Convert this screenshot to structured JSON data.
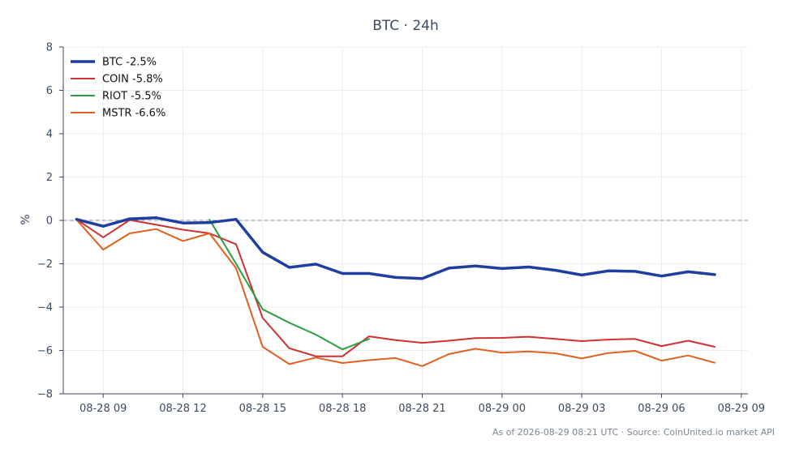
{
  "chart_data": {
    "type": "line",
    "title": "BTC · 24h",
    "xlabel": "",
    "ylabel": "%",
    "ylim": [
      -8,
      8
    ],
    "yticks": [
      8,
      6,
      4,
      2,
      0,
      -2,
      -4,
      -6,
      -8
    ],
    "xlim": [
      "2026-08-28 07:30",
      "2026-08-29 09:15"
    ],
    "xticks": [
      {
        "t": "2026-08-28 09:00",
        "label": "08-28 09"
      },
      {
        "t": "2026-08-28 12:00",
        "label": "08-28 12"
      },
      {
        "t": "2026-08-28 15:00",
        "label": "08-28 15"
      },
      {
        "t": "2026-08-28 18:00",
        "label": "08-28 18"
      },
      {
        "t": "2026-08-28 21:00",
        "label": "08-28 21"
      },
      {
        "t": "2026-08-29 00:00",
        "label": "08-29 00"
      },
      {
        "t": "2026-08-29 03:00",
        "label": "08-29 03"
      },
      {
        "t": "2026-08-29 06:00",
        "label": "08-29 06"
      },
      {
        "t": "2026-08-29 09:00",
        "label": "08-29 09"
      }
    ],
    "grid": true,
    "legend": "top-left",
    "reference_line": {
      "y": 0,
      "color": "#8090a8",
      "style": "dashed"
    },
    "series": [
      {
        "name": "BTC -2.5%",
        "color": "#1f3fa0",
        "width": 3.5,
        "x": [
          "2026-08-28 08:00",
          "2026-08-28 09:00",
          "2026-08-28 10:00",
          "2026-08-28 11:00",
          "2026-08-28 12:00",
          "2026-08-28 13:00",
          "2026-08-28 14:00",
          "2026-08-28 15:00",
          "2026-08-28 16:00",
          "2026-08-28 17:00",
          "2026-08-28 18:00",
          "2026-08-28 19:00",
          "2026-08-28 20:00",
          "2026-08-28 21:00",
          "2026-08-28 22:00",
          "2026-08-28 23:00",
          "2026-08-29 00:00",
          "2026-08-29 01:00",
          "2026-08-29 02:00",
          "2026-08-29 03:00",
          "2026-08-29 04:00",
          "2026-08-29 05:00",
          "2026-08-29 06:00",
          "2026-08-29 07:00",
          "2026-08-29 08:00"
        ],
        "y": [
          0.05,
          -0.27,
          0.07,
          0.12,
          -0.12,
          -0.1,
          0.05,
          -1.47,
          -2.17,
          -2.02,
          -2.45,
          -2.45,
          -2.63,
          -2.68,
          -2.2,
          -2.1,
          -2.22,
          -2.15,
          -2.3,
          -2.52,
          -2.33,
          -2.35,
          -2.57,
          -2.37,
          -2.5
        ]
      },
      {
        "name": "COIN -5.8%",
        "color": "#d03030",
        "width": 2,
        "x": [
          "2026-08-28 08:00",
          "2026-08-28 09:00",
          "2026-08-28 10:00",
          "2026-08-28 11:00",
          "2026-08-28 12:00",
          "2026-08-28 13:00",
          "2026-08-28 14:00",
          "2026-08-28 15:00",
          "2026-08-28 16:00",
          "2026-08-28 17:00",
          "2026-08-28 18:00",
          "2026-08-28 19:00",
          "2026-08-28 20:00",
          "2026-08-28 21:00",
          "2026-08-28 22:00",
          "2026-08-28 23:00",
          "2026-08-29 00:00",
          "2026-08-29 01:00",
          "2026-08-29 02:00",
          "2026-08-29 03:00",
          "2026-08-29 04:00",
          "2026-08-29 05:00",
          "2026-08-29 06:00",
          "2026-08-29 07:00",
          "2026-08-29 08:00"
        ],
        "y": [
          0.05,
          -0.78,
          0.02,
          -0.2,
          -0.43,
          -0.6,
          -1.1,
          -4.5,
          -5.9,
          -6.27,
          -6.27,
          -5.35,
          -5.52,
          -5.65,
          -5.55,
          -5.43,
          -5.42,
          -5.37,
          -5.47,
          -5.57,
          -5.5,
          -5.47,
          -5.8,
          -5.55,
          -5.83
        ]
      },
      {
        "name": "RIOT -5.5%",
        "color": "#28a040",
        "width": 2,
        "x": [
          "2026-08-28 13:00",
          "2026-08-28 14:00",
          "2026-08-28 15:00",
          "2026-08-28 16:00",
          "2026-08-28 17:00",
          "2026-08-28 18:00",
          "2026-08-28 19:00"
        ],
        "y": [
          0.03,
          -2.0,
          -4.1,
          -4.72,
          -5.27,
          -5.95,
          -5.47
        ]
      },
      {
        "name": "MSTR -6.6%",
        "color": "#e06020",
        "width": 2,
        "x": [
          "2026-08-28 08:00",
          "2026-08-28 09:00",
          "2026-08-28 10:00",
          "2026-08-28 11:00",
          "2026-08-28 12:00",
          "2026-08-28 13:00",
          "2026-08-28 14:00",
          "2026-08-28 15:00",
          "2026-08-28 16:00",
          "2026-08-28 17:00",
          "2026-08-28 18:00",
          "2026-08-28 19:00",
          "2026-08-28 20:00",
          "2026-08-28 21:00",
          "2026-08-28 22:00",
          "2026-08-28 23:00",
          "2026-08-29 00:00",
          "2026-08-29 01:00",
          "2026-08-29 02:00",
          "2026-08-29 03:00",
          "2026-08-29 04:00",
          "2026-08-29 05:00",
          "2026-08-29 06:00",
          "2026-08-29 07:00",
          "2026-08-29 08:00"
        ],
        "y": [
          0.03,
          -1.35,
          -0.6,
          -0.4,
          -0.95,
          -0.6,
          -2.2,
          -5.83,
          -6.63,
          -6.33,
          -6.58,
          -6.45,
          -6.35,
          -6.72,
          -6.17,
          -5.92,
          -6.1,
          -6.05,
          -6.13,
          -6.37,
          -6.12,
          -6.02,
          -6.47,
          -6.23,
          -6.57
        ]
      }
    ]
  },
  "footer": {
    "text": "As of 2026-08-29 08:21 UTC · Source: CoinUnited.io market API"
  }
}
